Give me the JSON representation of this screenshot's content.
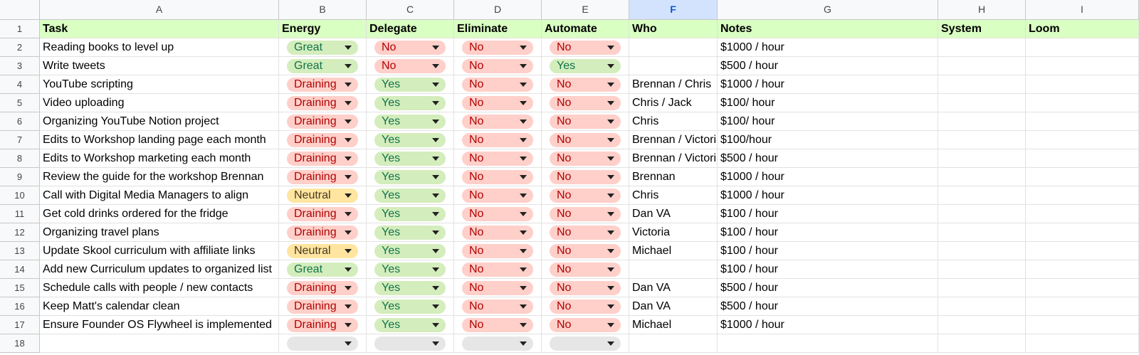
{
  "columns": [
    "A",
    "B",
    "C",
    "D",
    "E",
    "F",
    "G",
    "H",
    "I"
  ],
  "selected_column": "F",
  "headers": {
    "task": "Task",
    "energy": "Energy",
    "delegate": "Delegate",
    "eliminate": "Eliminate",
    "automate": "Automate",
    "who": "Who",
    "notes": "Notes",
    "system": "System",
    "loom": "Loom"
  },
  "chip_colors": {
    "Great": "green",
    "Neutral": "yellow",
    "Draining": "red",
    "Yes": "green",
    "No": "red",
    "": "gray"
  },
  "rows": [
    {
      "n": "2",
      "task": "Reading books to level up",
      "energy": "Great",
      "delegate": "No",
      "eliminate": "No",
      "automate": "No",
      "who": "",
      "notes": "$1000 / hour"
    },
    {
      "n": "3",
      "task": "Write tweets",
      "energy": "Great",
      "delegate": "No",
      "eliminate": "No",
      "automate": "Yes",
      "who": "",
      "notes": "$500 / hour"
    },
    {
      "n": "4",
      "task": "YouTube scripting",
      "energy": "Draining",
      "delegate": "Yes",
      "eliminate": "No",
      "automate": "No",
      "who": "Brennan / Chris",
      "notes": "$1000 / hour"
    },
    {
      "n": "5",
      "task": "Video uploading",
      "energy": "Draining",
      "delegate": "Yes",
      "eliminate": "No",
      "automate": "No",
      "who": "Chris / Jack",
      "notes": "$100/ hour"
    },
    {
      "n": "6",
      "task": "Organizing YouTube Notion project",
      "energy": "Draining",
      "delegate": "Yes",
      "eliminate": "No",
      "automate": "No",
      "who": "Chris",
      "notes": "$100/ hour"
    },
    {
      "n": "7",
      "task": "Edits to Workshop landing page each month",
      "energy": "Draining",
      "delegate": "Yes",
      "eliminate": "No",
      "automate": "No",
      "who": "Brennan / Victori",
      "notes": "$100/hour"
    },
    {
      "n": "8",
      "task": "Edits to Workshop marketing each month",
      "energy": "Draining",
      "delegate": "Yes",
      "eliminate": "No",
      "automate": "No",
      "who": "Brennan / Victori",
      "notes": "$500 / hour"
    },
    {
      "n": "9",
      "task": "Review the guide for the workshop Brennan",
      "energy": "Draining",
      "delegate": "Yes",
      "eliminate": "No",
      "automate": "No",
      "who": "Brennan",
      "notes": "$1000 / hour"
    },
    {
      "n": "10",
      "task": "Call with Digital Media Managers to align",
      "energy": "Neutral",
      "delegate": "Yes",
      "eliminate": "No",
      "automate": "No",
      "who": "Chris",
      "notes": "$1000 / hour"
    },
    {
      "n": "11",
      "task": "Get cold drinks ordered for the fridge",
      "energy": "Draining",
      "delegate": "Yes",
      "eliminate": "No",
      "automate": "No",
      "who": "Dan VA",
      "notes": "$100 / hour"
    },
    {
      "n": "12",
      "task": "Organizing travel plans",
      "energy": "Draining",
      "delegate": "Yes",
      "eliminate": "No",
      "automate": "No",
      "who": "Victoria",
      "notes": "$100 / hour"
    },
    {
      "n": "13",
      "task": "Update Skool curriculum with affiliate links",
      "energy": "Neutral",
      "delegate": "Yes",
      "eliminate": "No",
      "automate": "No",
      "who": "Michael",
      "notes": "$100 / hour"
    },
    {
      "n": "14",
      "task": "Add new Curriculum updates to organized list",
      "energy": "Great",
      "delegate": "Yes",
      "eliminate": "No",
      "automate": "No",
      "who": "",
      "notes": "$100 / hour"
    },
    {
      "n": "15",
      "task": "Schedule calls with people / new contacts",
      "energy": "Draining",
      "delegate": "Yes",
      "eliminate": "No",
      "automate": "No",
      "who": "Dan VA",
      "notes": "$500 / hour"
    },
    {
      "n": "16",
      "task": "Keep Matt's calendar clean",
      "energy": "Draining",
      "delegate": "Yes",
      "eliminate": "No",
      "automate": "No",
      "who": "Dan VA",
      "notes": "$500 / hour"
    },
    {
      "n": "17",
      "task": "Ensure Founder OS Flywheel is implemented",
      "energy": "Draining",
      "delegate": "Yes",
      "eliminate": "No",
      "automate": "No",
      "who": "Michael",
      "notes": "$1000 / hour"
    },
    {
      "n": "18",
      "task": "",
      "energy": "",
      "delegate": "",
      "eliminate": "",
      "automate": "",
      "who": "",
      "notes": ""
    }
  ]
}
